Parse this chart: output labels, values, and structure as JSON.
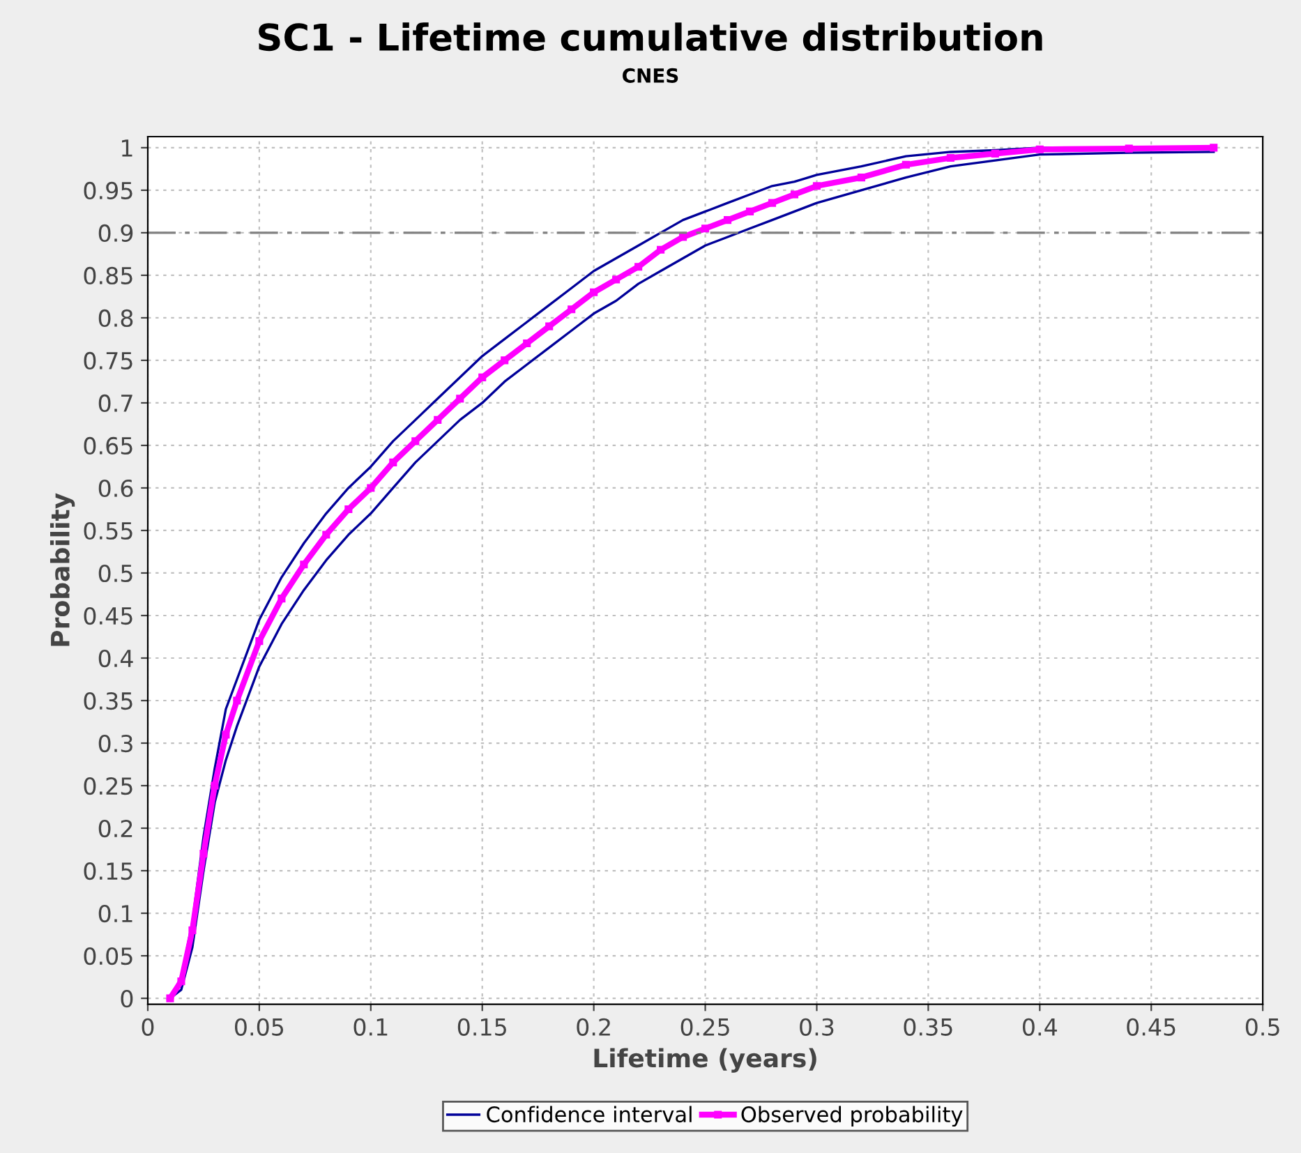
{
  "chart_data": {
    "type": "line",
    "title": "SC1 - Lifetime cumulative distribution",
    "subtitle": "CNES",
    "xlabel": "Lifetime (years)",
    "ylabel": "Probability",
    "x": [
      0.01,
      0.015,
      0.02,
      0.025,
      0.03,
      0.035,
      0.04,
      0.05,
      0.06,
      0.07,
      0.08,
      0.09,
      0.1,
      0.11,
      0.12,
      0.13,
      0.14,
      0.15,
      0.16,
      0.17,
      0.18,
      0.19,
      0.2,
      0.21,
      0.22,
      0.23,
      0.24,
      0.25,
      0.26,
      0.27,
      0.28,
      0.29,
      0.3,
      0.32,
      0.34,
      0.36,
      0.38,
      0.4,
      0.44,
      0.478
    ],
    "series": [
      {
        "name": "Confidence interval",
        "color": "#000099",
        "marker": "none",
        "values": [
          0,
          0.025,
          0.09,
          0.19,
          0.27,
          0.34,
          0.375,
          0.445,
          0.495,
          0.535,
          0.57,
          0.6,
          0.625,
          0.655,
          0.68,
          0.705,
          0.73,
          0.755,
          0.775,
          0.795,
          0.815,
          0.835,
          0.855,
          0.87,
          0.885,
          0.9,
          0.915,
          0.925,
          0.935,
          0.945,
          0.955,
          0.96,
          0.968,
          0.978,
          0.99,
          0.995,
          0.997,
          1.0,
          1.0,
          1.0
        ]
      },
      {
        "color": "#000099",
        "marker": "none",
        "values": [
          0,
          0.01,
          0.06,
          0.15,
          0.23,
          0.28,
          0.32,
          0.39,
          0.44,
          0.48,
          0.515,
          0.545,
          0.57,
          0.6,
          0.63,
          0.655,
          0.68,
          0.7,
          0.725,
          0.745,
          0.765,
          0.785,
          0.805,
          0.82,
          0.84,
          0.855,
          0.87,
          0.885,
          0.895,
          0.905,
          0.915,
          0.925,
          0.935,
          0.95,
          0.965,
          0.978,
          0.985,
          0.992,
          0.994,
          0.995
        ]
      },
      {
        "name": "Observed probability",
        "color": "#ff00ff",
        "marker": "square",
        "values": [
          0,
          0.02,
          0.08,
          0.17,
          0.25,
          0.31,
          0.35,
          0.42,
          0.47,
          0.51,
          0.545,
          0.575,
          0.6,
          0.63,
          0.655,
          0.68,
          0.705,
          0.73,
          0.75,
          0.77,
          0.79,
          0.81,
          0.83,
          0.845,
          0.86,
          0.88,
          0.895,
          0.905,
          0.915,
          0.925,
          0.935,
          0.945,
          0.955,
          0.965,
          0.98,
          0.988,
          0.993,
          0.998,
          0.999,
          1.0
        ]
      }
    ],
    "xlim": [
      0,
      0.5
    ],
    "xticks": [
      0,
      0.05,
      0.1,
      0.15,
      0.2,
      0.25,
      0.3,
      0.35,
      0.4,
      0.45,
      0.5
    ],
    "ylim": [
      -0.007,
      1.013
    ],
    "yticks": [
      0,
      0.05,
      0.1,
      0.15,
      0.2,
      0.25,
      0.3,
      0.35,
      0.4,
      0.45,
      0.5,
      0.55,
      0.6,
      0.65,
      0.7,
      0.75,
      0.8,
      0.85,
      0.9,
      0.95,
      1
    ],
    "ref_lines": [
      {
        "axis": "y",
        "value": 0.9,
        "color": "#808080",
        "line_style": "dashdot"
      }
    ],
    "grid": true,
    "legend": "bottom"
  }
}
